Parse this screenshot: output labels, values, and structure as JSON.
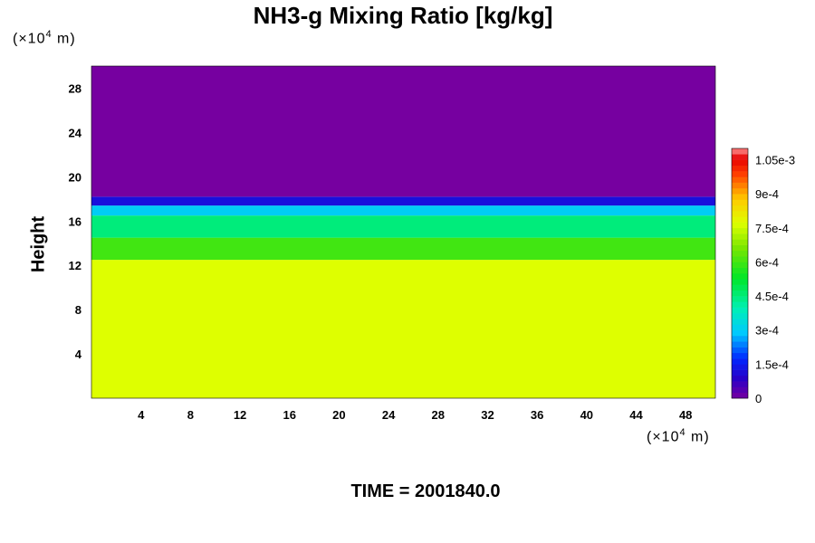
{
  "title": "NH3-g Mixing Ratio [kg/kg]",
  "time_label": "TIME = 2001840.0",
  "y_unit": "(×10",
  "x_unit": "(×10",
  "unit_exp": "4",
  "unit_tail": " m)",
  "chart_data": {
    "type": "heatmap",
    "title": "NH3-g Mixing Ratio [kg/kg]",
    "ylabel": "Height",
    "xlabel": "",
    "xlim": [
      0,
      50.4
    ],
    "ylim": [
      0,
      30
    ],
    "x_ticks": [
      "4",
      "8",
      "12",
      "16",
      "20",
      "24",
      "28",
      "32",
      "36",
      "40",
      "44",
      "48"
    ],
    "x_tick_values": [
      4,
      8,
      12,
      16,
      20,
      24,
      28,
      32,
      36,
      40,
      44,
      48
    ],
    "y_ticks": [
      "4",
      "8",
      "12",
      "16",
      "20",
      "24",
      "28"
    ],
    "y_tick_values": [
      4,
      8,
      12,
      16,
      20,
      24,
      28
    ],
    "colorbar": {
      "min": 0,
      "max": 0.0011,
      "labels": [
        "0",
        "1.5e-4",
        "3e-4",
        "4.5e-4",
        "6e-4",
        "7.5e-4",
        "9e-4",
        "1.05e-3"
      ],
      "label_values": [
        0,
        0.00015,
        0.0003,
        0.00045,
        0.0006,
        0.00075,
        0.0009,
        0.00105
      ]
    },
    "layers": [
      {
        "y_from": 0,
        "y_to": 12.5,
        "value": 0.00077
      },
      {
        "y_from": 12.5,
        "y_to": 14.5,
        "value": 0.0006
      },
      {
        "y_from": 14.5,
        "y_to": 16.5,
        "value": 0.00045
      },
      {
        "y_from": 16.5,
        "y_to": 17.4,
        "value": 0.0003
      },
      {
        "y_from": 17.4,
        "y_to": 18.2,
        "value": 0.00012
      },
      {
        "y_from": 18.2,
        "y_to": 30,
        "value": 0.0
      }
    ]
  }
}
